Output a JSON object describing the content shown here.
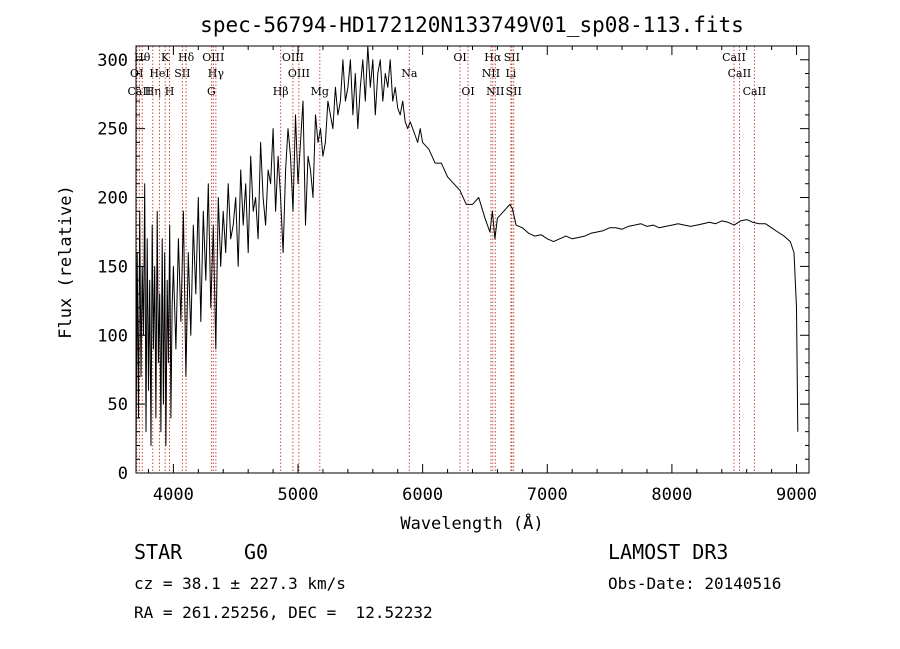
{
  "chart_data": {
    "type": "line",
    "title": "spec-56794-HD172120N133749V01_sp08-113.fits",
    "xlabel": "Wavelength (Å)",
    "ylabel": "Flux (relative)",
    "xlim": [
      3700,
      9100
    ],
    "ylim": [
      0,
      310
    ],
    "xticks": [
      4000,
      5000,
      6000,
      7000,
      8000,
      9000
    ],
    "yticks": [
      0,
      50,
      100,
      150,
      200,
      250,
      300
    ],
    "series": [
      {
        "name": "flux",
        "x": [
          3700,
          3710,
          3720,
          3730,
          3740,
          3750,
          3760,
          3770,
          3780,
          3790,
          3800,
          3810,
          3820,
          3830,
          3840,
          3850,
          3860,
          3870,
          3880,
          3890,
          3900,
          3910,
          3920,
          3930,
          3940,
          3950,
          3960,
          3970,
          3980,
          3990,
          4000,
          4020,
          4040,
          4060,
          4080,
          4100,
          4120,
          4140,
          4160,
          4180,
          4200,
          4220,
          4240,
          4260,
          4280,
          4300,
          4320,
          4340,
          4360,
          4380,
          4400,
          4420,
          4440,
          4460,
          4480,
          4500,
          4520,
          4540,
          4560,
          4580,
          4600,
          4620,
          4640,
          4660,
          4680,
          4700,
          4720,
          4740,
          4760,
          4780,
          4800,
          4820,
          4840,
          4860,
          4880,
          4900,
          4920,
          4940,
          4960,
          4980,
          5000,
          5020,
          5040,
          5060,
          5080,
          5100,
          5120,
          5140,
          5160,
          5180,
          5200,
          5220,
          5240,
          5260,
          5280,
          5300,
          5320,
          5340,
          5360,
          5380,
          5400,
          5420,
          5440,
          5460,
          5480,
          5500,
          5520,
          5540,
          5560,
          5580,
          5600,
          5620,
          5640,
          5660,
          5680,
          5700,
          5720,
          5740,
          5760,
          5780,
          5800,
          5820,
          5840,
          5860,
          5880,
          5900,
          5920,
          5940,
          5960,
          5980,
          6000,
          6050,
          6100,
          6150,
          6200,
          6250,
          6300,
          6350,
          6400,
          6450,
          6500,
          6540,
          6560,
          6580,
          6600,
          6650,
          6700,
          6720,
          6750,
          6800,
          6850,
          6900,
          6950,
          7000,
          7050,
          7100,
          7150,
          7200,
          7250,
          7300,
          7350,
          7400,
          7450,
          7500,
          7550,
          7600,
          7650,
          7700,
          7750,
          7800,
          7850,
          7900,
          7950,
          8000,
          8050,
          8100,
          8150,
          8200,
          8250,
          8300,
          8350,
          8400,
          8450,
          8500,
          8550,
          8600,
          8650,
          8700,
          8750,
          8800,
          8850,
          8900,
          8950,
          8980,
          9000,
          9010
        ],
        "y": [
          10,
          160,
          40,
          190,
          70,
          150,
          100,
          210,
          30,
          170,
          60,
          140,
          20,
          180,
          90,
          150,
          40,
          190,
          80,
          130,
          30,
          170,
          50,
          160,
          20,
          140,
          80,
          180,
          40,
          120,
          150,
          90,
          170,
          110,
          190,
          70,
          160,
          100,
          180,
          130,
          200,
          110,
          190,
          140,
          210,
          120,
          180,
          90,
          200,
          150,
          190,
          160,
          210,
          170,
          180,
          200,
          150,
          220,
          180,
          210,
          160,
          230,
          190,
          200,
          170,
          240,
          200,
          180,
          220,
          210,
          250,
          190,
          230,
          200,
          160,
          220,
          250,
          230,
          190,
          260,
          210,
          240,
          270,
          180,
          230,
          220,
          200,
          260,
          240,
          250,
          230,
          240,
          270,
          260,
          250,
          280,
          260,
          270,
          300,
          270,
          280,
          300,
          260,
          290,
          250,
          280,
          300,
          270,
          310,
          280,
          300,
          260,
          290,
          300,
          270,
          290,
          280,
          300,
          270,
          280,
          265,
          260,
          270,
          255,
          250,
          255,
          250,
          245,
          240,
          250,
          240,
          235,
          225,
          225,
          215,
          210,
          205,
          195,
          195,
          200,
          185,
          175,
          190,
          170,
          185,
          190,
          195,
          192,
          180,
          178,
          174,
          172,
          173,
          170,
          168,
          170,
          172,
          170,
          171,
          172,
          174,
          175,
          176,
          178,
          178,
          177,
          179,
          180,
          181,
          179,
          180,
          178,
          179,
          180,
          181,
          180,
          179,
          180,
          181,
          182,
          181,
          183,
          182,
          180,
          183,
          184,
          182,
          181,
          181,
          178,
          175,
          172,
          168,
          160,
          120,
          30
        ]
      }
    ],
    "lines": [
      {
        "name": "OI",
        "x": 3706,
        "row": 2
      },
      {
        "name": "CaII",
        "x": 3727,
        "row": 3
      },
      {
        "name": "Hθ",
        "x": 3750,
        "row": 1
      },
      {
        "name": "Hη",
        "x": 3835,
        "row": 3
      },
      {
        "name": "HeI",
        "x": 3889,
        "row": 2
      },
      {
        "name": "K",
        "x": 3934,
        "row": 1
      },
      {
        "name": "H",
        "x": 3969,
        "row": 3
      },
      {
        "name": "SII",
        "x": 4072,
        "row": 2
      },
      {
        "name": "Hδ",
        "x": 4102,
        "row": 1
      },
      {
        "name": "OIII",
        "x": 4320,
        "row": 1
      },
      {
        "name": "Hγ",
        "x": 4341,
        "row": 2
      },
      {
        "name": "G",
        "x": 4305,
        "row": 3
      },
      {
        "name": "Hβ",
        "x": 4861,
        "row": 3
      },
      {
        "name": "OIII",
        "x": 4959,
        "row": 1
      },
      {
        "name": "OIII",
        "x": 5007,
        "row": 2
      },
      {
        "name": "Mg",
        "x": 5175,
        "row": 3
      },
      {
        "name": "Na",
        "x": 5893,
        "row": 2
      },
      {
        "name": "OI",
        "x": 6300,
        "row": 1
      },
      {
        "name": "OI",
        "x": 6364,
        "row": 3
      },
      {
        "name": "Hα",
        "x": 6563,
        "row": 1
      },
      {
        "name": "NII",
        "x": 6548,
        "row": 2
      },
      {
        "name": "NII",
        "x": 6583,
        "row": 3
      },
      {
        "name": "SII",
        "x": 6716,
        "row": 1
      },
      {
        "name": "Li",
        "x": 6708,
        "row": 2
      },
      {
        "name": "SII",
        "x": 6731,
        "row": 3
      },
      {
        "name": "CaII",
        "x": 8498,
        "row": 1
      },
      {
        "name": "CaII",
        "x": 8542,
        "row": 2
      },
      {
        "name": "CaII",
        "x": 8662,
        "row": 3
      }
    ]
  },
  "info": {
    "object_class": "STAR",
    "subclass": "G0",
    "survey": "LAMOST DR3",
    "cz": "cz = 38.1 ± 227.3 km/s",
    "obs_date": "Obs-Date: 20140516",
    "coords": "RA = 261.25256, DEC =  12.52232"
  }
}
